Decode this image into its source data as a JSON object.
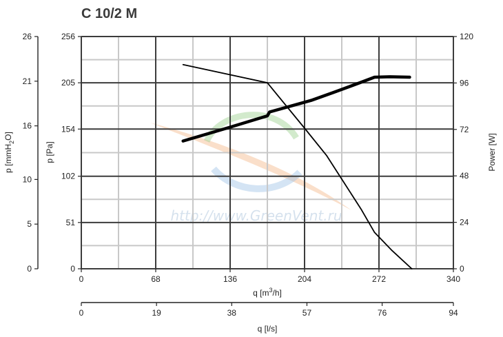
{
  "title": "C 10/2 M",
  "watermark": "http://www.GreenVent.ru",
  "colors": {
    "grid_major": "#3c3c3c",
    "grid_minor": "#c8c8c8",
    "curve": "#000000",
    "watermark_green": "#9bd08f",
    "watermark_blue": "#9fc3e6",
    "watermark_orange": "#f3b98a"
  },
  "chart_data": {
    "type": "line",
    "title": "C 10/2 M",
    "grid": true,
    "x_axes": [
      {
        "label": "q [m³/h]",
        "label_base": "q [m",
        "label_sup": "3",
        "label_end": "/h]",
        "range": [
          0,
          340
        ],
        "ticks": [
          0,
          68,
          136,
          204,
          272,
          340
        ]
      },
      {
        "label": "q [l/s]",
        "range": [
          0,
          94
        ],
        "ticks": [
          0,
          19,
          38,
          57,
          76,
          94
        ]
      }
    ],
    "y_axes": [
      {
        "label": "p [mmH₂O]",
        "label_base": "p [mmH",
        "label_sub": "2",
        "label_end": "O]",
        "range": [
          0,
          26
        ],
        "ticks": [
          0,
          5,
          10,
          16,
          21,
          26
        ]
      },
      {
        "label": "p [Pa]",
        "range": [
          0,
          256
        ],
        "ticks": [
          0,
          51,
          102,
          154,
          205,
          256
        ]
      },
      {
        "label": "Power [W]",
        "range": [
          0,
          120
        ],
        "ticks": [
          0,
          24,
          48,
          72,
          96,
          120
        ]
      }
    ],
    "series": [
      {
        "axis": "pressure",
        "x": [
          93,
          170,
          204,
          224,
          240,
          256,
          268,
          284,
          302
        ],
        "y": [
          225,
          205,
          155,
          125,
          95,
          65,
          40,
          20,
          0
        ]
      },
      {
        "axis": "power",
        "x": [
          93,
          135,
          170,
          172,
          210,
          230,
          254,
          268,
          282,
          300
        ],
        "y": [
          66,
          73,
          79,
          81,
          87,
          91,
          96,
          99,
          99.2,
          99
        ]
      }
    ]
  }
}
